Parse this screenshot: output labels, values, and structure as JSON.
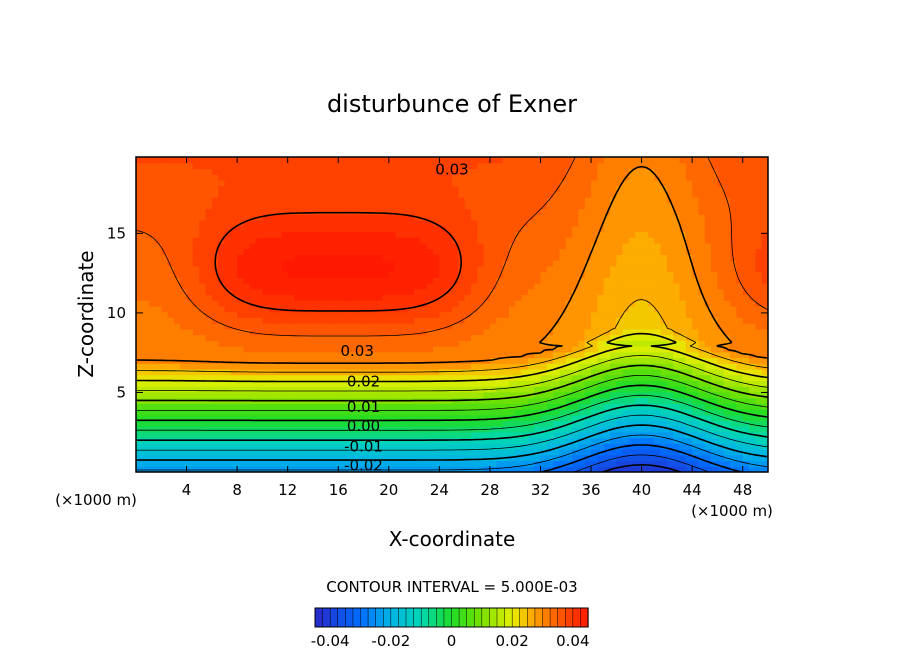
{
  "chart_data": {
    "type": "heatmap",
    "title": "disturbunce of Exner",
    "xlabel": "X-coordinate",
    "ylabel": "Z-coordinate",
    "x_unit": "(×1000 m)",
    "z_unit": "(×1000 m)",
    "xlim": [
      0,
      50
    ],
    "ylim": [
      0,
      19.8
    ],
    "x_ticks": [
      4,
      8,
      12,
      16,
      20,
      24,
      28,
      32,
      36,
      40,
      44,
      48
    ],
    "y_ticks": [
      5,
      10,
      15
    ],
    "contour_interval_text": "CONTOUR INTERVAL = 5.000E-03",
    "contour_labels": [
      {
        "text": "0.03",
        "x": 25,
        "z": 19
      },
      {
        "text": "0.03",
        "x": 17.5,
        "z": 7.6
      },
      {
        "text": "0.02",
        "x": 18,
        "z": 5.7
      },
      {
        "text": "0.01",
        "x": 18,
        "z": 4.1
      },
      {
        "text": "0.00",
        "x": 18,
        "z": 2.9
      },
      {
        "text": "-0.01",
        "x": 18,
        "z": 1.6
      },
      {
        "text": "-0.02",
        "x": 18,
        "z": 0.4
      }
    ],
    "colorbar": {
      "range": [
        -0.045,
        0.045
      ],
      "tick_labels": [
        "-0.04",
        "-0.02",
        "0",
        "0.02",
        "0.04"
      ],
      "tick_values": [
        -0.04,
        -0.02,
        0,
        0.02,
        0.04
      ]
    }
  }
}
